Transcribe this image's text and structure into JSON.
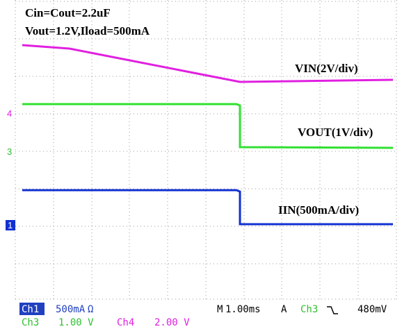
{
  "notes": {
    "line1": "Cin=Cout=2.2uF",
    "line2": "Vout=1.2V,Iload=500mA"
  },
  "trace_labels": {
    "vin": "VIN(2V/div)",
    "vout": "VOUT(1V/div)",
    "iin": "IIN(500mA/div)"
  },
  "channel_markers": {
    "ch4": "4",
    "ch3": "3",
    "ch1": "1"
  },
  "status": {
    "row1": {
      "ch1": "Ch1",
      "ch1_scale": "500mA",
      "ch1_unit": "Ω",
      "timebase_label": "M",
      "timebase": "1.00ms",
      "trigger": "A",
      "trigger_source": "Ch3",
      "trigger_level": "480mV"
    },
    "row2": {
      "ch3": "Ch3",
      "ch3_scale": "1.00 V",
      "ch4": "Ch4",
      "ch4_scale": "2.00 V"
    }
  }
}
